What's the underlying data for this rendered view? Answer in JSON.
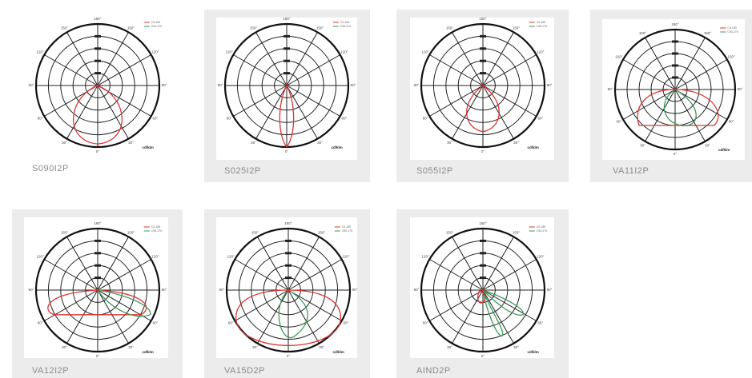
{
  "diagrams": [
    {
      "label": "S090I2P"
    },
    {
      "label": "S025I2P"
    },
    {
      "label": "S055I2P"
    },
    {
      "label": "VA11I2P"
    },
    {
      "label": "VA12I2P"
    },
    {
      "label": "VA15D2P"
    },
    {
      "label": "AIND2P"
    }
  ],
  "angle_labels": {
    "top": "180°",
    "upper": "150°",
    "mid_upper": "120°",
    "side": "90°",
    "mid_lower": "60°",
    "lower": "30°",
    "bottom": "0°"
  },
  "unit": "cd/klm",
  "legend": [
    "C0-180",
    "C90-270"
  ]
}
